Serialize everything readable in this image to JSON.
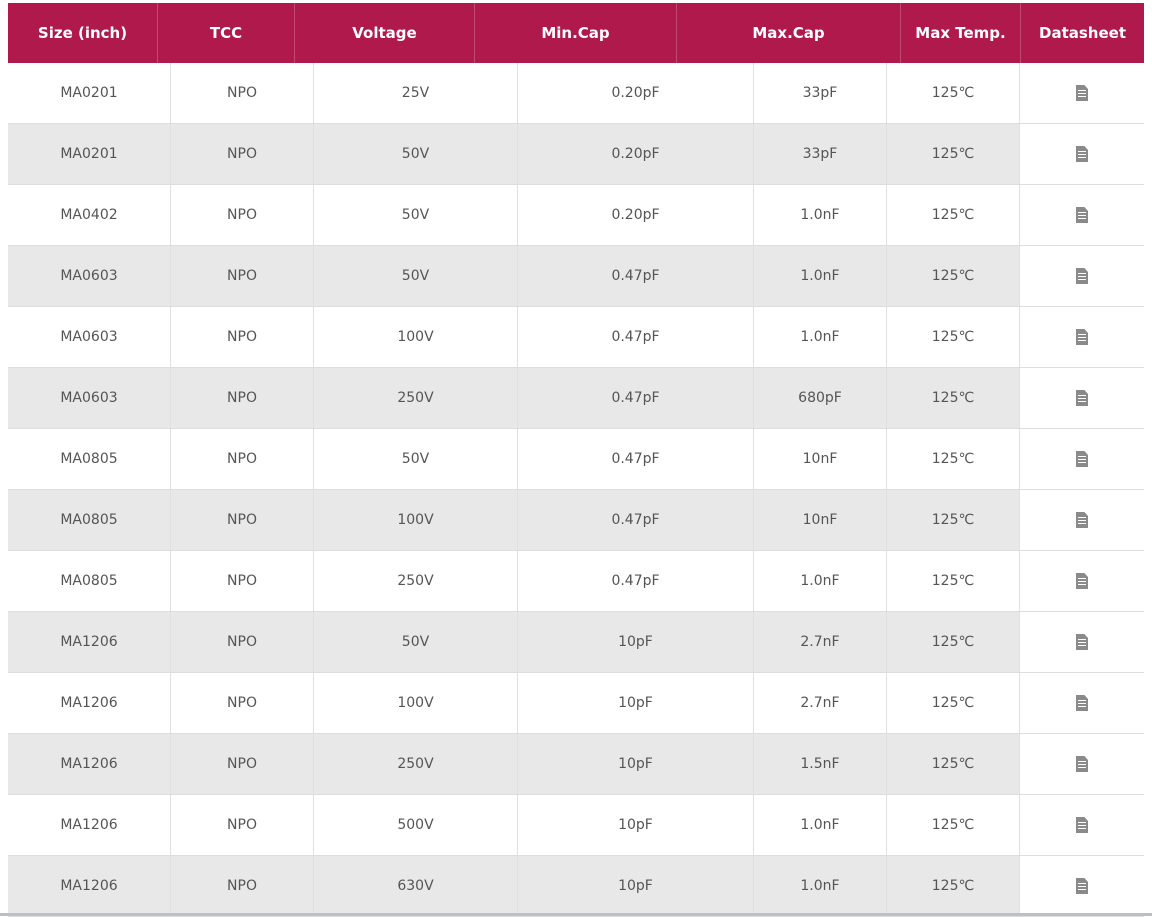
{
  "headers": [
    "Size (inch)",
    "TCC",
    "Voltage",
    "Min.Cap",
    "Max.Cap",
    "Max Temp.",
    "Datasheet"
  ],
  "rows": [
    [
      "MA0201",
      "NPO",
      "25V",
      "0.20pF",
      "33pF",
      "125℃"
    ],
    [
      "MA0201",
      "NPO",
      "50V",
      "0.20pF",
      "33pF",
      "125℃"
    ],
    [
      "MA0402",
      "NPO",
      "50V",
      "0.20pF",
      "1.0nF",
      "125℃"
    ],
    [
      "MA0603",
      "NPO",
      "50V",
      "0.47pF",
      "1.0nF",
      "125℃"
    ],
    [
      "MA0603",
      "NPO",
      "100V",
      "0.47pF",
      "1.0nF",
      "125℃"
    ],
    [
      "MA0603",
      "NPO",
      "250V",
      "0.47pF",
      "680pF",
      "125℃"
    ],
    [
      "MA0805",
      "NPO",
      "50V",
      "0.47pF",
      "10nF",
      "125℃"
    ],
    [
      "MA0805",
      "NPO",
      "100V",
      "0.47pF",
      "10nF",
      "125℃"
    ],
    [
      "MA0805",
      "NPO",
      "250V",
      "0.47pF",
      "1.0nF",
      "125℃"
    ],
    [
      "MA1206",
      "NPO",
      "50V",
      "10pF",
      "2.7nF",
      "125℃"
    ],
    [
      "MA1206",
      "NPO",
      "100V",
      "10pF",
      "2.7nF",
      "125℃"
    ],
    [
      "MA1206",
      "NPO",
      "250V",
      "10pF",
      "1.5nF",
      "125℃"
    ],
    [
      "MA1206",
      "NPO",
      "500V",
      "10pF",
      "1.0nF",
      "125℃"
    ],
    [
      "MA1206",
      "NPO",
      "630V",
      "10pF",
      "1.0nF",
      "125℃"
    ]
  ],
  "colors": {
    "header_bg": "#b0194b",
    "stripe": "#e8e8e8"
  },
  "datasheet_icon": "document-icon"
}
